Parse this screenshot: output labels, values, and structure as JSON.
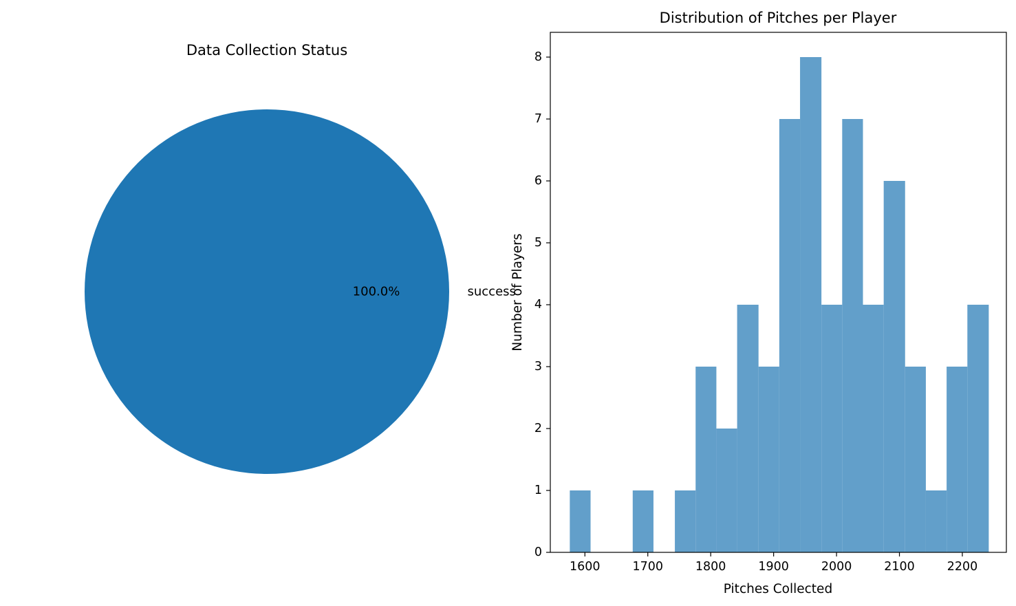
{
  "colors": {
    "pie_slice": "#1f77b4",
    "hist_bar": "#629fca",
    "axis": "#000000",
    "background": "#ffffff"
  },
  "chart_data": [
    {
      "type": "pie",
      "title": "Data Collection Status",
      "slices": [
        {
          "label": "success",
          "value": 100.0,
          "pct_label": "100.0%"
        }
      ]
    },
    {
      "type": "bar",
      "subtype": "histogram",
      "title": "Distribution of Pitches per Player",
      "xlabel": "Pitches Collected",
      "ylabel": "Number of Players",
      "xlim": [
        1545,
        2270
      ],
      "ylim": [
        0,
        8.4
      ],
      "xticks": [
        1600,
        1700,
        1800,
        1900,
        2000,
        2100,
        2200
      ],
      "yticks": [
        0,
        1,
        2,
        3,
        4,
        5,
        6,
        7,
        8
      ],
      "bins": [
        1576,
        1609,
        1643,
        1676,
        1709,
        1743,
        1776,
        1809,
        1842,
        1876,
        1909,
        1942,
        1976,
        2009,
        2042,
        2075,
        2109,
        2142,
        2175,
        2208,
        2242
      ],
      "counts": [
        1,
        0,
        0,
        1,
        0,
        1,
        3,
        2,
        4,
        3,
        7,
        8,
        4,
        7,
        4,
        6,
        3,
        1,
        3,
        4
      ],
      "grid": false
    }
  ]
}
